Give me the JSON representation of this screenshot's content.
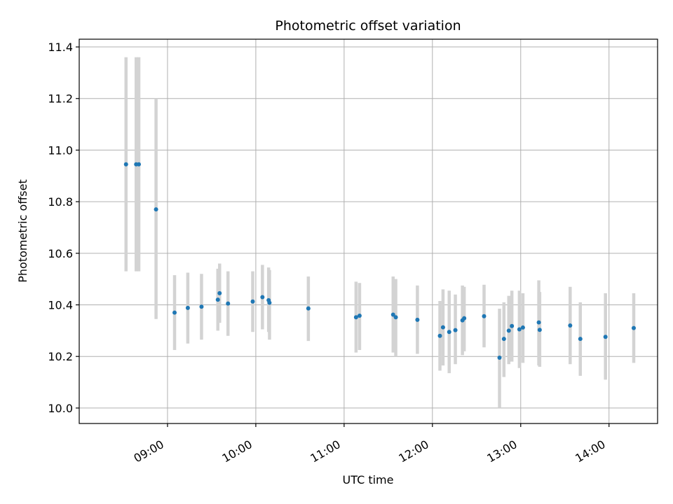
{
  "chart_data": {
    "type": "scatter",
    "title": "Photometric offset variation",
    "xlabel": "UTC time",
    "ylabel": "Photometric offset",
    "x_unit": "hours UTC",
    "xlim": [
      8.0,
      14.55
    ],
    "ylim": [
      9.94,
      11.43
    ],
    "x_ticks": [
      {
        "value": 9,
        "label": "09:00"
      },
      {
        "value": 10,
        "label": "10:00"
      },
      {
        "value": 11,
        "label": "11:00"
      },
      {
        "value": 12,
        "label": "12:00"
      },
      {
        "value": 13,
        "label": "13:00"
      },
      {
        "value": 14,
        "label": "14:00"
      }
    ],
    "y_ticks": [
      {
        "value": 10.0,
        "label": "10.0"
      },
      {
        "value": 10.2,
        "label": "10.2"
      },
      {
        "value": 10.4,
        "label": "10.4"
      },
      {
        "value": 10.6,
        "label": "10.6"
      },
      {
        "value": 10.8,
        "label": "10.8"
      },
      {
        "value": 11.0,
        "label": "11.0"
      },
      {
        "value": 11.2,
        "label": "11.2"
      },
      {
        "value": 11.4,
        "label": "11.4"
      }
    ],
    "grid": true,
    "marker_color": "#1f77b4",
    "errorbar_color": "#d3d3d3",
    "points": [
      {
        "x": 8.53,
        "y": 10.945,
        "lo": 10.53,
        "hi": 11.36
      },
      {
        "x": 8.645,
        "y": 10.945,
        "lo": 10.53,
        "hi": 11.36
      },
      {
        "x": 8.675,
        "y": 10.945,
        "lo": 10.53,
        "hi": 11.36
      },
      {
        "x": 8.87,
        "y": 10.77,
        "lo": 10.345,
        "hi": 11.2
      },
      {
        "x": 9.08,
        "y": 10.37,
        "lo": 10.225,
        "hi": 10.515
      },
      {
        "x": 9.23,
        "y": 10.388,
        "lo": 10.25,
        "hi": 10.525
      },
      {
        "x": 9.385,
        "y": 10.393,
        "lo": 10.265,
        "hi": 10.52
      },
      {
        "x": 9.57,
        "y": 10.42,
        "lo": 10.3,
        "hi": 10.54
      },
      {
        "x": 9.59,
        "y": 10.445,
        "lo": 10.33,
        "hi": 10.56
      },
      {
        "x": 9.685,
        "y": 10.405,
        "lo": 10.28,
        "hi": 10.53
      },
      {
        "x": 9.965,
        "y": 10.413,
        "lo": 10.295,
        "hi": 10.53
      },
      {
        "x": 10.075,
        "y": 10.43,
        "lo": 10.305,
        "hi": 10.555
      },
      {
        "x": 10.145,
        "y": 10.418,
        "lo": 10.295,
        "hi": 10.545
      },
      {
        "x": 10.155,
        "y": 10.408,
        "lo": 10.265,
        "hi": 10.535
      },
      {
        "x": 10.595,
        "y": 10.386,
        "lo": 10.26,
        "hi": 10.51
      },
      {
        "x": 11.135,
        "y": 10.352,
        "lo": 10.215,
        "hi": 10.49
      },
      {
        "x": 11.175,
        "y": 10.358,
        "lo": 10.225,
        "hi": 10.485
      },
      {
        "x": 11.555,
        "y": 10.362,
        "lo": 10.215,
        "hi": 10.51
      },
      {
        "x": 11.585,
        "y": 10.352,
        "lo": 10.2,
        "hi": 10.5
      },
      {
        "x": 11.83,
        "y": 10.342,
        "lo": 10.21,
        "hi": 10.475
      },
      {
        "x": 12.085,
        "y": 10.28,
        "lo": 10.145,
        "hi": 10.415
      },
      {
        "x": 12.12,
        "y": 10.313,
        "lo": 10.165,
        "hi": 10.46
      },
      {
        "x": 12.19,
        "y": 10.295,
        "lo": 10.135,
        "hi": 10.455
      },
      {
        "x": 12.26,
        "y": 10.302,
        "lo": 10.17,
        "hi": 10.44
      },
      {
        "x": 12.34,
        "y": 10.34,
        "lo": 10.205,
        "hi": 10.475
      },
      {
        "x": 12.36,
        "y": 10.348,
        "lo": 10.22,
        "hi": 10.47
      },
      {
        "x": 12.585,
        "y": 10.356,
        "lo": 10.235,
        "hi": 10.478
      },
      {
        "x": 12.76,
        "y": 10.195,
        "lo": 10.0,
        "hi": 10.385
      },
      {
        "x": 12.81,
        "y": 10.268,
        "lo": 10.12,
        "hi": 10.41
      },
      {
        "x": 12.865,
        "y": 10.3,
        "lo": 10.17,
        "hi": 10.435
      },
      {
        "x": 12.9,
        "y": 10.318,
        "lo": 10.18,
        "hi": 10.455
      },
      {
        "x": 12.985,
        "y": 10.305,
        "lo": 10.155,
        "hi": 10.455
      },
      {
        "x": 13.025,
        "y": 10.312,
        "lo": 10.175,
        "hi": 10.445
      },
      {
        "x": 13.205,
        "y": 10.332,
        "lo": 10.165,
        "hi": 10.495
      },
      {
        "x": 13.215,
        "y": 10.303,
        "lo": 10.16,
        "hi": 10.45
      },
      {
        "x": 13.56,
        "y": 10.32,
        "lo": 10.17,
        "hi": 10.47
      },
      {
        "x": 13.675,
        "y": 10.268,
        "lo": 10.125,
        "hi": 10.41
      },
      {
        "x": 13.96,
        "y": 10.276,
        "lo": 10.11,
        "hi": 10.445
      },
      {
        "x": 14.28,
        "y": 10.31,
        "lo": 10.175,
        "hi": 10.445
      }
    ]
  }
}
